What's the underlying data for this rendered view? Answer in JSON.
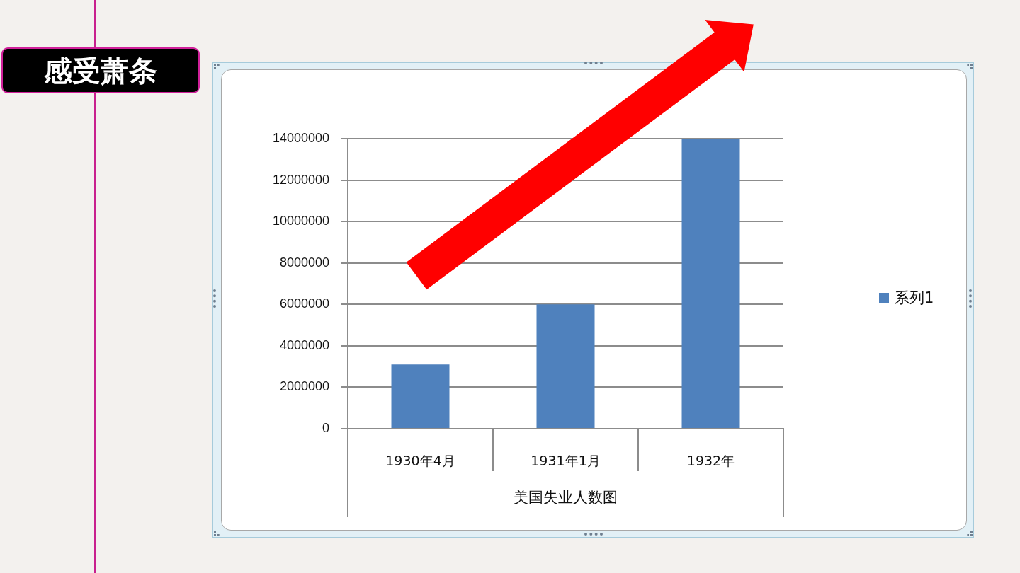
{
  "chart_data": {
    "type": "bar",
    "title": "感受萧条",
    "xlabel": "美国失业人数图",
    "categories": [
      "1930年4月",
      "1931年1月",
      "1932年"
    ],
    "series": [
      {
        "name": "系列1",
        "color": "#4f81bd",
        "values": [
          3100000,
          6000000,
          14000000
        ]
      }
    ],
    "ylim": [
      0,
      14000000
    ],
    "yticks": [
      0,
      2000000,
      4000000,
      6000000,
      8000000,
      10000000,
      12000000,
      14000000
    ],
    "grid": "y",
    "legend": "right"
  }
}
